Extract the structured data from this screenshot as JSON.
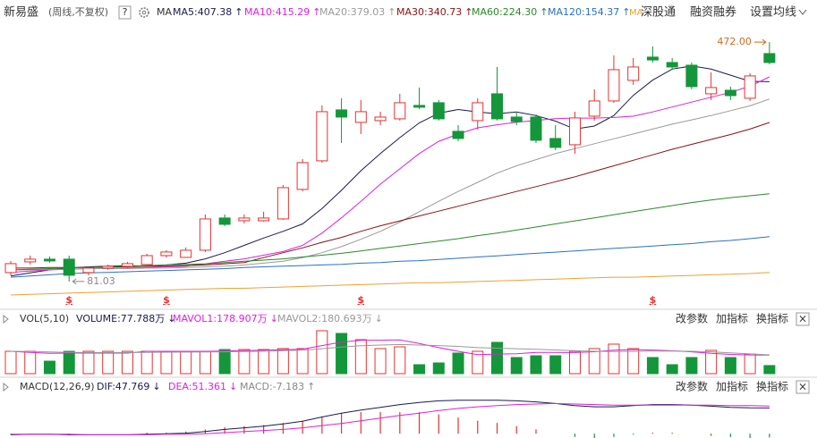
{
  "header": {
    "stock": "新易盛",
    "period": "(周线,不复权)",
    "help": "?",
    "ma": "MA",
    "hk_prefix": "MA",
    "hk": "深股通",
    "margin": "融资融券",
    "settings": "设置均线"
  },
  "chart_data": [
    {
      "type": "candlestick",
      "ylim": [
        59,
        497
      ],
      "up_color": "#e8312f",
      "down_color": "#14963a",
      "open": [
        95.6,
        113.1,
        117.5,
        117.5,
        95.6,
        102.9,
        105.8,
        108.7,
        123.3,
        120.4,
        132.1,
        184.7,
        180.3,
        180.3,
        183.2,
        231.4,
        278.1,
        361.3,
        340.9,
        343.8,
        346.7,
        368.6,
        373,
        326.3,
        343.8,
        387.6,
        349.6,
        349.6,
        314.6,
        304.4,
        351.1,
        375.9,
        409.5,
        447.5,
        438.7,
        434.3,
        387.6,
        393.4,
        380.3,
        453.3
      ],
      "high": [
        114.6,
        123.3,
        121.9,
        123.3,
        105.8,
        108.7,
        113.1,
        126.3,
        132.1,
        136.5,
        190.5,
        190.5,
        190.5,
        194.9,
        238.7,
        281,
        368.6,
        380.3,
        377.4,
        358.4,
        387.6,
        397.8,
        377.4,
        336.5,
        380.3,
        431.4,
        358.4,
        354,
        336.5,
        358.4,
        394.9,
        450.4,
        446,
        465,
        446,
        438.7,
        422.6,
        399.3,
        421.2,
        472
      ],
      "low": [
        91.2,
        108.7,
        111.7,
        81.03,
        91.2,
        100,
        102.9,
        105.8,
        120.4,
        121.9,
        129.2,
        171.5,
        175.9,
        178.8,
        181.7,
        228.5,
        275.2,
        307.3,
        321.9,
        336.5,
        343.8,
        362.8,
        343.8,
        310.2,
        329.2,
        343.8,
        336.5,
        307.3,
        295.6,
        289.8,
        343.8,
        373,
        402.2,
        438.7,
        427,
        394.9,
        377.4,
        377.4,
        375.9,
        435.7
      ],
      "close": [
        110.2,
        117.5,
        114.6,
        91.2,
        102.9,
        105.8,
        110.2,
        123.3,
        129.2,
        132.1,
        183.2,
        174.4,
        184.7,
        184.7,
        234.3,
        275.2,
        358.4,
        349.6,
        358.4,
        349.6,
        373,
        365.7,
        346.7,
        314.6,
        373,
        346.7,
        342.3,
        311.7,
        300,
        348.2,
        375.9,
        427,
        431.4,
        442.9,
        431.4,
        399.3,
        397.8,
        384.6,
        416.8,
        438.7
      ],
      "series": [
        {
          "name": "MA5:407.38",
          "arrow": "↑",
          "color": "#1a1a4e",
          "values": [
            90,
            95,
            100,
            103,
            105,
            106,
            107,
            106,
            108,
            111,
            118,
            128,
            140,
            152,
            163,
            175,
            200,
            230,
            262,
            290,
            316,
            340,
            356,
            362,
            358,
            355,
            358,
            352,
            343,
            330,
            335,
            352,
            385,
            410,
            428,
            433,
            428,
            418,
            408,
            407.38
          ]
        },
        {
          "name": "MA10:415.29",
          "arrow": "↑",
          "color": "#e01ee0",
          "values": [
            96,
            98,
            100,
            101,
            102,
            103,
            103,
            104,
            105,
            106,
            110,
            114,
            118,
            124,
            130,
            140,
            160,
            185,
            212,
            240,
            265,
            290,
            310,
            322,
            332,
            337,
            341,
            344,
            347,
            348,
            348,
            349,
            351,
            358,
            366,
            374,
            382,
            390,
            400,
            415.29
          ]
        },
        {
          "name": "MA20:379.03",
          "arrow": "↑",
          "color": "#9a9a9a",
          "values": [
            100,
            100,
            101,
            101,
            102,
            102,
            102,
            103,
            103,
            104,
            105,
            106,
            108,
            111,
            114,
            120,
            128,
            138,
            150,
            163,
            178,
            195,
            212,
            228,
            243,
            258,
            270,
            280,
            290,
            298,
            306,
            314,
            322,
            330,
            338,
            345,
            352,
            360,
            368,
            379.03
          ]
        },
        {
          "name": "MA30:340.73",
          "arrow": "↑",
          "color": "#8b1010",
          "values": [
            103,
            103,
            104,
            104,
            104,
            105,
            105,
            106,
            106,
            107,
            108,
            110,
            112,
            120,
            128,
            136,
            145,
            153,
            163,
            172,
            180,
            188,
            196,
            204,
            212,
            220,
            228,
            236,
            244,
            252,
            261,
            270,
            279,
            288,
            297,
            305,
            313,
            321,
            330,
            340.73
          ]
        },
        {
          "name": "MA60:224.30",
          "arrow": "↑",
          "color": "#2a8a2a",
          "values": [
            100,
            101,
            102,
            103,
            104,
            105,
            106,
            107,
            108,
            109,
            110,
            112,
            114,
            116,
            118,
            121,
            124,
            127,
            131,
            135,
            139,
            143,
            147,
            151,
            156,
            160,
            165,
            170,
            175,
            180,
            185,
            190,
            195,
            200,
            205,
            210,
            214,
            218,
            221,
            224.3
          ]
        },
        {
          "name": "MA120:154.37",
          "arrow": "↑",
          "color": "#2a70c8",
          "values": [
            88,
            90,
            92,
            94,
            95,
            96,
            97,
            98,
            99,
            100,
            101,
            102,
            104,
            105,
            106,
            107,
            108,
            109,
            111,
            112,
            114,
            115,
            117,
            119,
            121,
            123,
            125,
            127,
            129,
            131,
            133,
            135,
            137,
            139,
            141,
            143,
            146,
            148,
            151,
            154.37
          ]
        },
        {
          "color": "#f0a030",
          "values": [
            59,
            60,
            61,
            62,
            63,
            64,
            65,
            66,
            67,
            68,
            69,
            70,
            70,
            71,
            72,
            73,
            74,
            75,
            76,
            77,
            78,
            79,
            79,
            80,
            81,
            82,
            83,
            84,
            85,
            86,
            87,
            88,
            88,
            89,
            90,
            91,
            92,
            93,
            94,
            96
          ]
        }
      ],
      "annotations": [
        {
          "index": 39,
          "field": "high",
          "label": "472.00",
          "color": "#d06a20"
        },
        {
          "index": 3,
          "field": "low",
          "label": "81.03",
          "color": "#888888"
        }
      ],
      "markers": [
        {
          "index": 3,
          "label": "$"
        },
        {
          "index": 8,
          "label": "$"
        },
        {
          "index": 18,
          "label": "$"
        },
        {
          "index": 33,
          "label": "$"
        }
      ]
    },
    {
      "type": "bar",
      "title": "VOL(5,10)",
      "name": "VOLUME:77.788万",
      "arrow": "↓",
      "color": "#1a1a4e",
      "ylim": [
        0,
        430
      ],
      "values": [
        215,
        215,
        120,
        215,
        215,
        215,
        215,
        215,
        215,
        215,
        215,
        232,
        232,
        232,
        241,
        241,
        413,
        387,
        327,
        241,
        258,
        86,
        103,
        198,
        215,
        301,
        155,
        172,
        172,
        215,
        241,
        284,
        241,
        155,
        86,
        155,
        224,
        155,
        189,
        77.788
      ],
      "series": [
        {
          "name": "MAVOL1:178.907万",
          "arrow": "↓",
          "color": "#e01ee0",
          "values": [
            215,
            205,
            195,
            198,
            198,
            198,
            198,
            215,
            215,
            215,
            215,
            218,
            222,
            225,
            230,
            236,
            270,
            303,
            322,
            322,
            325,
            290,
            250,
            215,
            182,
            188,
            192,
            205,
            205,
            203,
            211,
            226,
            231,
            227,
            220,
            210,
            195,
            185,
            180,
            178.907
          ]
        },
        {
          "name": "MAVOL2:180.693万",
          "arrow": "↓",
          "color": "#999999",
          "values": [
            215,
            212,
            208,
            205,
            203,
            203,
            203,
            205,
            206,
            207,
            208,
            210,
            212,
            215,
            220,
            225,
            240,
            255,
            268,
            275,
            280,
            275,
            270,
            262,
            250,
            245,
            240,
            235,
            228,
            220,
            215,
            212,
            214,
            217,
            218,
            215,
            210,
            200,
            190,
            180.693
          ]
        }
      ],
      "buttons": [
        "改参数",
        "加指标",
        "换指标",
        "×"
      ]
    },
    {
      "type": "macd",
      "title": "MACD(12,26,9)",
      "name": "MACD:-7.183",
      "arrow": "↑",
      "color": "#888888",
      "ylim": [
        -8,
        70
      ],
      "values": [
        -2,
        0,
        0,
        -2,
        0,
        0,
        0,
        2,
        2,
        4,
        8,
        12,
        14,
        16,
        20,
        24,
        32,
        38,
        40,
        40,
        40,
        40,
        36,
        30,
        24,
        20,
        14,
        8,
        0,
        -6,
        -8,
        -6,
        -2,
        2,
        2,
        0,
        -4,
        -6,
        -8,
        -7.183
      ],
      "series": [
        {
          "name": "DIF:47.769",
          "arrow": "↓",
          "color": "#1a1a4e",
          "values": [
            -2,
            -1,
            -1,
            -2,
            -2,
            -2,
            -2,
            -1,
            0,
            1,
            4,
            8,
            11,
            14,
            18,
            23,
            31,
            38,
            44,
            49,
            54,
            58,
            61,
            62,
            62,
            62,
            61,
            59,
            56,
            52,
            50,
            50,
            52,
            54,
            54,
            53,
            51,
            49,
            48,
            47.769
          ]
        },
        {
          "name": "DEA:51.361",
          "arrow": "↓",
          "color": "#e01ee0",
          "values": [
            -1,
            -1,
            -1,
            -1,
            -2,
            -2,
            -2,
            -2,
            -1,
            -1,
            0,
            2,
            4,
            6,
            8,
            11,
            15,
            19,
            24,
            29,
            34,
            38,
            43,
            47,
            50,
            52,
            54,
            55,
            56,
            55,
            54,
            53,
            53,
            53,
            53,
            53,
            53,
            52,
            52,
            51.361
          ]
        }
      ],
      "buttons": [
        "改参数",
        "加指标",
        "换指标",
        "×"
      ]
    }
  ]
}
